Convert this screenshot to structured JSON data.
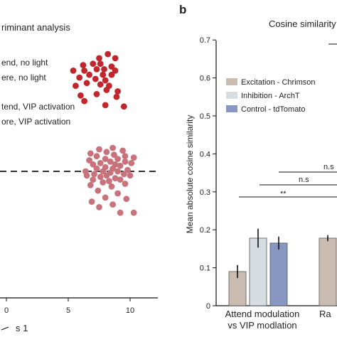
{
  "panel_labels": {
    "b": "b"
  },
  "left_panel": {
    "title": "riminant analysis",
    "legend": [
      "end, no light",
      "ere, no light",
      "tend, VIP activation",
      "ore, VIP activation"
    ],
    "xlabel": "s 1",
    "xlabel_icon": "arrow-icon",
    "x_ticks": [
      "0",
      "5",
      "10"
    ],
    "colors": {
      "dark": "#c0262b",
      "light": "#c8727b"
    }
  },
  "chart_data": [
    {
      "type": "scatter",
      "xlim": [
        0,
        12
      ],
      "x_ticks": [
        0,
        5,
        10
      ],
      "threshold_line": "dashed",
      "series": [
        {
          "values": [
            [
              8.2,
              8.5
            ],
            [
              7.5,
              8.2
            ],
            [
              8.8,
              8.2
            ],
            [
              6.2,
              7.7
            ],
            [
              7.0,
              7.8
            ],
            [
              7.6,
              7.8
            ],
            [
              8.5,
              7.6
            ],
            [
              5.4,
              7.3
            ],
            [
              6.3,
              7.3
            ],
            [
              7.3,
              7.4
            ],
            [
              7.9,
              7.4
            ],
            [
              8.8,
              7.3
            ],
            [
              6.7,
              7.0
            ],
            [
              7.8,
              7.0
            ],
            [
              8.5,
              7.0
            ],
            [
              5.9,
              6.8
            ],
            [
              7.2,
              6.7
            ],
            [
              8.0,
              6.6
            ],
            [
              6.5,
              6.4
            ],
            [
              7.6,
              6.3
            ],
            [
              8.3,
              6.2
            ],
            [
              5.6,
              6.2
            ],
            [
              8.1,
              5.9
            ],
            [
              9.0,
              5.8
            ],
            [
              6.0,
              5.5
            ],
            [
              7.3,
              5.6
            ],
            [
              8.9,
              5.4
            ],
            [
              6.3,
              5.1
            ],
            [
              8.0,
              4.8
            ],
            [
              9.5,
              4.7
            ]
          ]
        },
        {
          "values": [
            [
              8.6,
              1.7
            ],
            [
              7.5,
              1.6
            ],
            [
              9.4,
              1.5
            ],
            [
              8.1,
              1.4
            ],
            [
              6.8,
              1.3
            ],
            [
              8.7,
              1.2
            ],
            [
              9.6,
              1.1
            ],
            [
              7.3,
              1.1
            ],
            [
              10.3,
              1.0
            ],
            [
              8.0,
              0.9
            ],
            [
              9.0,
              0.9
            ],
            [
              6.7,
              0.8
            ],
            [
              8.4,
              0.7
            ],
            [
              9.6,
              0.7
            ],
            [
              7.6,
              0.6
            ],
            [
              10.1,
              0.6
            ],
            [
              7.0,
              0.5
            ],
            [
              8.8,
              0.5
            ],
            [
              9.2,
              0.4
            ],
            [
              8.0,
              0.3
            ],
            [
              7.3,
              0.2
            ],
            [
              8.6,
              0.2
            ],
            [
              9.8,
              0.1
            ],
            [
              6.4,
              0.0
            ],
            [
              7.8,
              0.0
            ],
            [
              9.0,
              0.0
            ],
            [
              8.4,
              -0.1
            ],
            [
              7.1,
              -0.2
            ],
            [
              9.5,
              -0.2
            ],
            [
              8.1,
              -0.3
            ],
            [
              6.5,
              -0.3
            ],
            [
              10.0,
              -0.3
            ],
            [
              7.6,
              -0.4
            ],
            [
              8.8,
              -0.5
            ],
            [
              7.0,
              -0.6
            ],
            [
              9.2,
              -0.6
            ],
            [
              8.3,
              -0.7
            ],
            [
              7.8,
              -0.8
            ],
            [
              9.6,
              -0.9
            ],
            [
              6.8,
              -1.0
            ],
            [
              8.5,
              -1.1
            ],
            [
              7.4,
              -1.4
            ],
            [
              9.0,
              -1.6
            ],
            [
              8.0,
              -1.9
            ],
            [
              6.9,
              -2.2
            ],
            [
              9.7,
              -2.0
            ],
            [
              8.6,
              -2.4
            ],
            [
              7.5,
              -2.6
            ],
            [
              9.2,
              -3.0
            ],
            [
              10.3,
              -3.0
            ]
          ]
        }
      ]
    },
    {
      "type": "bar",
      "title": "Cosine similarity",
      "ylabel": "Mean absolute cosine similarity",
      "ylim": [
        0,
        0.7
      ],
      "y_ticks": [
        "0",
        "0.1",
        "0.2",
        "0.3",
        "0.4",
        "0.5",
        "0.6",
        "0.7"
      ],
      "categories": [
        "Attend modulation\nvs VIP modlation",
        "Ra"
      ],
      "series": [
        {
          "name": "Excitation - Chrimson",
          "color": "#cbbcb2",
          "values": [
            0.09,
            0.178
          ],
          "errors": [
            0.017,
            0.008
          ]
        },
        {
          "name": "Inhibition - ArchT",
          "color": "#d5dde3",
          "values": [
            0.178,
            null
          ],
          "errors": [
            0.025,
            null
          ]
        },
        {
          "name": "Control - tdTomato",
          "color": "#8797c2",
          "values": [
            0.165,
            null
          ],
          "errors": [
            0.017,
            null
          ]
        }
      ],
      "annotations": [
        "n.s",
        "n.s",
        "**"
      ]
    }
  ]
}
